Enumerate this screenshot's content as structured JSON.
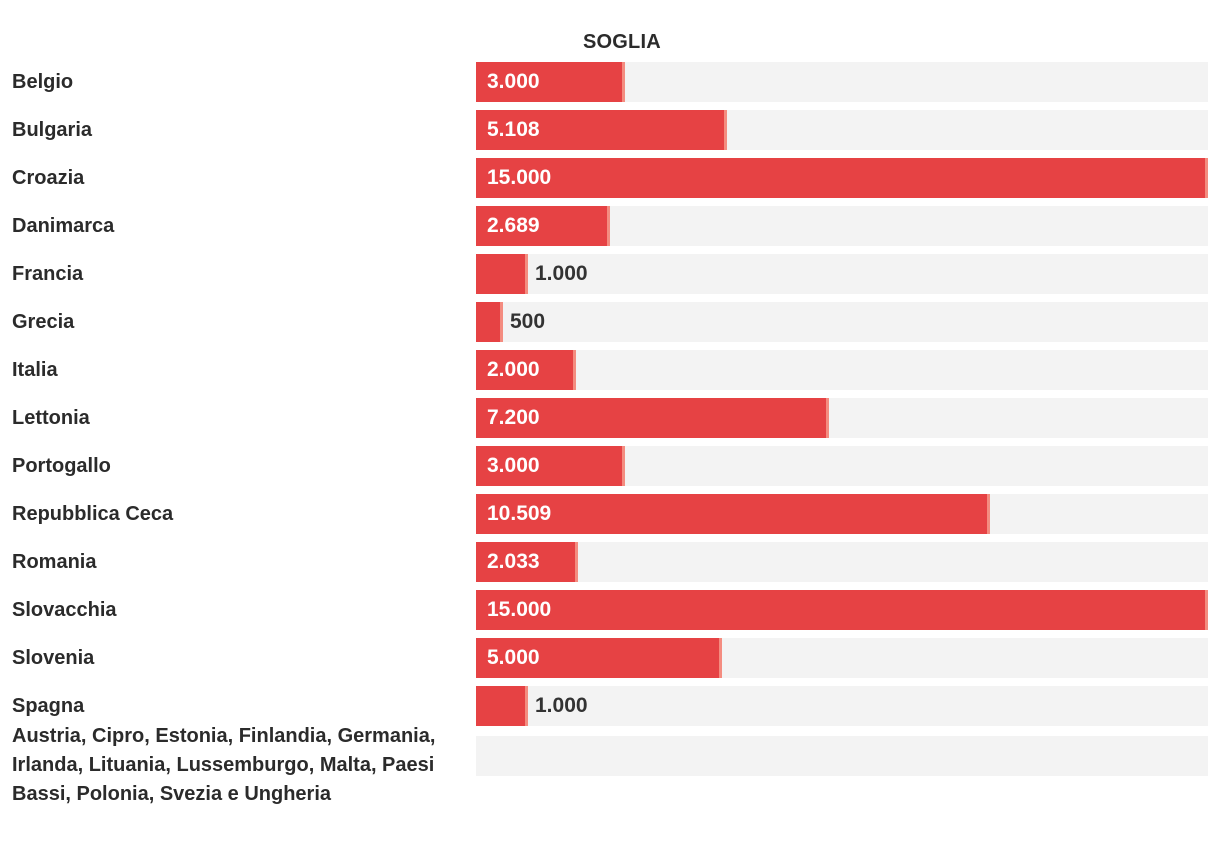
{
  "chart_data": {
    "type": "bar",
    "orientation": "horizontal",
    "title": "",
    "column_header": "SOGLIA",
    "xlim": [
      0,
      15000
    ],
    "categories": [
      "Belgio",
      "Bulgaria",
      "Croazia",
      "Danimarca",
      "Francia",
      "Grecia",
      "Italia",
      "Lettonia",
      "Portogallo",
      "Repubblica Ceca",
      "Romania",
      "Slovacchia",
      "Slovenia",
      "Spagna",
      "Austria, Cipro, Estonia, Finlandia, Germania, Irlanda, Lituania, Lussemburgo, Malta, Paesi Bassi, Polonia, Svezia e Ungheria"
    ],
    "values": [
      3000,
      5108,
      15000,
      2689,
      1000,
      500,
      2000,
      7200,
      3000,
      10509,
      2033,
      15000,
      5000,
      1000,
      null
    ],
    "value_labels": [
      "3.000",
      "5.108",
      "15.000",
      "2.689",
      "1.000",
      "500",
      "2.000",
      "7.200",
      "3.000",
      "10.509",
      "2.033",
      "15.000",
      "5.000",
      "1.000",
      ""
    ],
    "colors": {
      "bar": "#e64244",
      "cap": "#f48c80",
      "track": "#f3f3f3"
    }
  }
}
